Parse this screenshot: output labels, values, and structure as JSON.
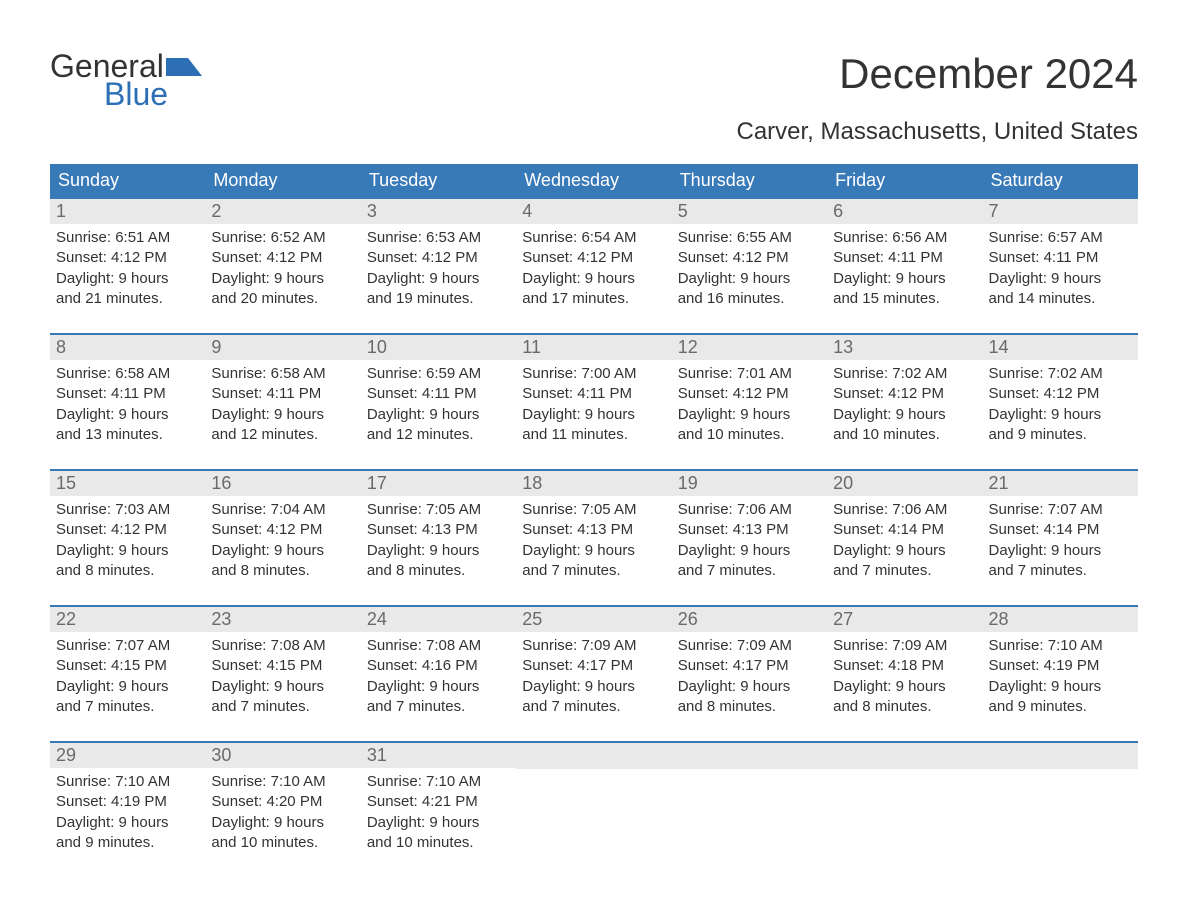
{
  "logo": {
    "word1": "General",
    "word2": "Blue",
    "accent_color": "#2c6fb5"
  },
  "title": "December 2024",
  "location": "Carver, Massachusetts, United States",
  "colors": {
    "header_bg": "#3879b8",
    "header_text": "#ffffff",
    "daynum_bg": "#e9e9e9",
    "daynum_text": "#6a6a6a",
    "body_text": "#333333",
    "week_border": "#3879b8",
    "page_bg": "#ffffff"
  },
  "typography": {
    "title_fontsize": 42,
    "subtitle_fontsize": 24,
    "weekday_fontsize": 18,
    "daynum_fontsize": 18,
    "detail_fontsize": 15
  },
  "weekdays": [
    "Sunday",
    "Monday",
    "Tuesday",
    "Wednesday",
    "Thursday",
    "Friday",
    "Saturday"
  ],
  "weeks": [
    [
      {
        "n": "1",
        "sunrise": "Sunrise: 6:51 AM",
        "sunset": "Sunset: 4:12 PM",
        "dl1": "Daylight: 9 hours",
        "dl2": "and 21 minutes."
      },
      {
        "n": "2",
        "sunrise": "Sunrise: 6:52 AM",
        "sunset": "Sunset: 4:12 PM",
        "dl1": "Daylight: 9 hours",
        "dl2": "and 20 minutes."
      },
      {
        "n": "3",
        "sunrise": "Sunrise: 6:53 AM",
        "sunset": "Sunset: 4:12 PM",
        "dl1": "Daylight: 9 hours",
        "dl2": "and 19 minutes."
      },
      {
        "n": "4",
        "sunrise": "Sunrise: 6:54 AM",
        "sunset": "Sunset: 4:12 PM",
        "dl1": "Daylight: 9 hours",
        "dl2": "and 17 minutes."
      },
      {
        "n": "5",
        "sunrise": "Sunrise: 6:55 AM",
        "sunset": "Sunset: 4:12 PM",
        "dl1": "Daylight: 9 hours",
        "dl2": "and 16 minutes."
      },
      {
        "n": "6",
        "sunrise": "Sunrise: 6:56 AM",
        "sunset": "Sunset: 4:11 PM",
        "dl1": "Daylight: 9 hours",
        "dl2": "and 15 minutes."
      },
      {
        "n": "7",
        "sunrise": "Sunrise: 6:57 AM",
        "sunset": "Sunset: 4:11 PM",
        "dl1": "Daylight: 9 hours",
        "dl2": "and 14 minutes."
      }
    ],
    [
      {
        "n": "8",
        "sunrise": "Sunrise: 6:58 AM",
        "sunset": "Sunset: 4:11 PM",
        "dl1": "Daylight: 9 hours",
        "dl2": "and 13 minutes."
      },
      {
        "n": "9",
        "sunrise": "Sunrise: 6:58 AM",
        "sunset": "Sunset: 4:11 PM",
        "dl1": "Daylight: 9 hours",
        "dl2": "and 12 minutes."
      },
      {
        "n": "10",
        "sunrise": "Sunrise: 6:59 AM",
        "sunset": "Sunset: 4:11 PM",
        "dl1": "Daylight: 9 hours",
        "dl2": "and 12 minutes."
      },
      {
        "n": "11",
        "sunrise": "Sunrise: 7:00 AM",
        "sunset": "Sunset: 4:11 PM",
        "dl1": "Daylight: 9 hours",
        "dl2": "and 11 minutes."
      },
      {
        "n": "12",
        "sunrise": "Sunrise: 7:01 AM",
        "sunset": "Sunset: 4:12 PM",
        "dl1": "Daylight: 9 hours",
        "dl2": "and 10 minutes."
      },
      {
        "n": "13",
        "sunrise": "Sunrise: 7:02 AM",
        "sunset": "Sunset: 4:12 PM",
        "dl1": "Daylight: 9 hours",
        "dl2": "and 10 minutes."
      },
      {
        "n": "14",
        "sunrise": "Sunrise: 7:02 AM",
        "sunset": "Sunset: 4:12 PM",
        "dl1": "Daylight: 9 hours",
        "dl2": "and 9 minutes."
      }
    ],
    [
      {
        "n": "15",
        "sunrise": "Sunrise: 7:03 AM",
        "sunset": "Sunset: 4:12 PM",
        "dl1": "Daylight: 9 hours",
        "dl2": "and 8 minutes."
      },
      {
        "n": "16",
        "sunrise": "Sunrise: 7:04 AM",
        "sunset": "Sunset: 4:12 PM",
        "dl1": "Daylight: 9 hours",
        "dl2": "and 8 minutes."
      },
      {
        "n": "17",
        "sunrise": "Sunrise: 7:05 AM",
        "sunset": "Sunset: 4:13 PM",
        "dl1": "Daylight: 9 hours",
        "dl2": "and 8 minutes."
      },
      {
        "n": "18",
        "sunrise": "Sunrise: 7:05 AM",
        "sunset": "Sunset: 4:13 PM",
        "dl1": "Daylight: 9 hours",
        "dl2": "and 7 minutes."
      },
      {
        "n": "19",
        "sunrise": "Sunrise: 7:06 AM",
        "sunset": "Sunset: 4:13 PM",
        "dl1": "Daylight: 9 hours",
        "dl2": "and 7 minutes."
      },
      {
        "n": "20",
        "sunrise": "Sunrise: 7:06 AM",
        "sunset": "Sunset: 4:14 PM",
        "dl1": "Daylight: 9 hours",
        "dl2": "and 7 minutes."
      },
      {
        "n": "21",
        "sunrise": "Sunrise: 7:07 AM",
        "sunset": "Sunset: 4:14 PM",
        "dl1": "Daylight: 9 hours",
        "dl2": "and 7 minutes."
      }
    ],
    [
      {
        "n": "22",
        "sunrise": "Sunrise: 7:07 AM",
        "sunset": "Sunset: 4:15 PM",
        "dl1": "Daylight: 9 hours",
        "dl2": "and 7 minutes."
      },
      {
        "n": "23",
        "sunrise": "Sunrise: 7:08 AM",
        "sunset": "Sunset: 4:15 PM",
        "dl1": "Daylight: 9 hours",
        "dl2": "and 7 minutes."
      },
      {
        "n": "24",
        "sunrise": "Sunrise: 7:08 AM",
        "sunset": "Sunset: 4:16 PM",
        "dl1": "Daylight: 9 hours",
        "dl2": "and 7 minutes."
      },
      {
        "n": "25",
        "sunrise": "Sunrise: 7:09 AM",
        "sunset": "Sunset: 4:17 PM",
        "dl1": "Daylight: 9 hours",
        "dl2": "and 7 minutes."
      },
      {
        "n": "26",
        "sunrise": "Sunrise: 7:09 AM",
        "sunset": "Sunset: 4:17 PM",
        "dl1": "Daylight: 9 hours",
        "dl2": "and 8 minutes."
      },
      {
        "n": "27",
        "sunrise": "Sunrise: 7:09 AM",
        "sunset": "Sunset: 4:18 PM",
        "dl1": "Daylight: 9 hours",
        "dl2": "and 8 minutes."
      },
      {
        "n": "28",
        "sunrise": "Sunrise: 7:10 AM",
        "sunset": "Sunset: 4:19 PM",
        "dl1": "Daylight: 9 hours",
        "dl2": "and 9 minutes."
      }
    ],
    [
      {
        "n": "29",
        "sunrise": "Sunrise: 7:10 AM",
        "sunset": "Sunset: 4:19 PM",
        "dl1": "Daylight: 9 hours",
        "dl2": "and 9 minutes."
      },
      {
        "n": "30",
        "sunrise": "Sunrise: 7:10 AM",
        "sunset": "Sunset: 4:20 PM",
        "dl1": "Daylight: 9 hours",
        "dl2": "and 10 minutes."
      },
      {
        "n": "31",
        "sunrise": "Sunrise: 7:10 AM",
        "sunset": "Sunset: 4:21 PM",
        "dl1": "Daylight: 9 hours",
        "dl2": "and 10 minutes."
      },
      {
        "n": "",
        "empty": true
      },
      {
        "n": "",
        "empty": true
      },
      {
        "n": "",
        "empty": true
      },
      {
        "n": "",
        "empty": true
      }
    ]
  ]
}
